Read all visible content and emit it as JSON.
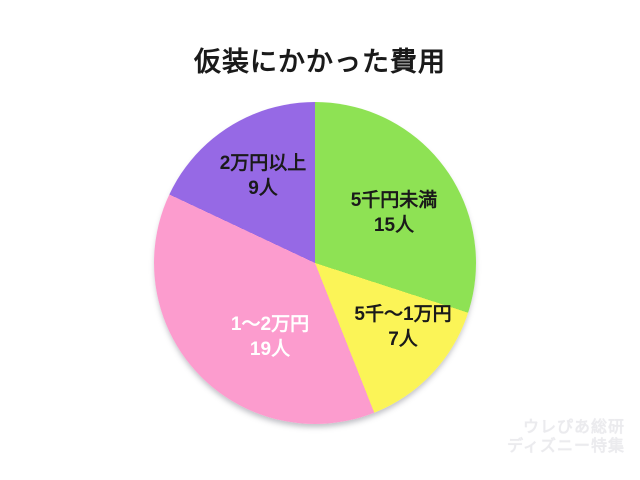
{
  "title": "仮装にかかった費用",
  "chart_data": {
    "type": "pie",
    "title": "仮装にかかった費用",
    "direction": "clockwise",
    "start_angle_deg": 0,
    "total": 50,
    "legend_position": "none",
    "labels_on_slices": true,
    "slices": [
      {
        "label": "5千円未満",
        "count_label": "15人",
        "value": 15,
        "percent": 30,
        "color": "#8EE254",
        "text_color": "#1a1a1a"
      },
      {
        "label": "5千～1万円",
        "count_label": "7人",
        "value": 7,
        "percent": 14,
        "color": "#FBF457",
        "text_color": "#1a1a1a"
      },
      {
        "label": "1～2万円",
        "count_label": "19人",
        "value": 19,
        "percent": 38,
        "color": "#FC9CCE",
        "text_color": "#ffffff"
      },
      {
        "label": "2万円以上",
        "count_label": "9人",
        "value": 9,
        "percent": 18,
        "color": "#9669E5",
        "text_color": "#1a1a1a"
      }
    ]
  },
  "watermark": {
    "line1": "ウレぴあ総研",
    "line2": "ディズニー特集"
  }
}
